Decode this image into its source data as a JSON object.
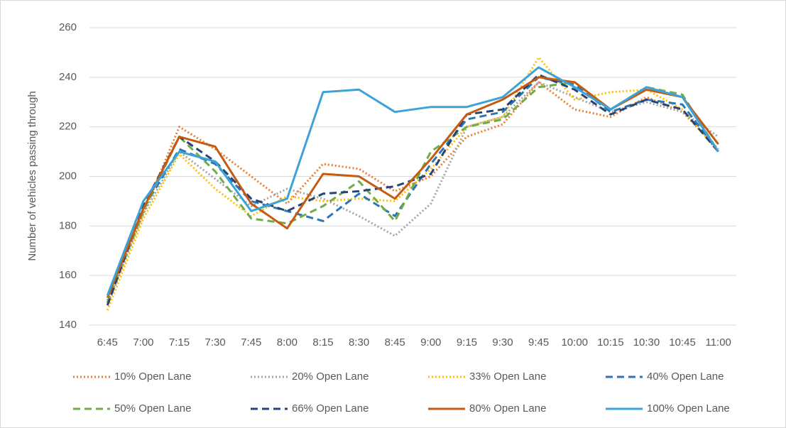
{
  "chart_data": {
    "type": "line",
    "y_label": "Number of vehicles passing through",
    "categories": [
      "6:45",
      "7:00",
      "7:15",
      "7:30",
      "7:45",
      "8:00",
      "8:15",
      "8:30",
      "8:45",
      "9:00",
      "9:15",
      "9:30",
      "9:45",
      "10:00",
      "10:15",
      "10:30",
      "10:45",
      "11:00"
    ],
    "ylim": [
      140,
      260
    ],
    "yticks": [
      140,
      160,
      180,
      200,
      220,
      240,
      260
    ],
    "grid": true,
    "legend": "bottom",
    "series": [
      {
        "name": "10% Open Lane",
        "color": "#ed7d31",
        "dash": "dotted",
        "values": [
          148,
          185,
          220,
          211,
          200,
          189,
          205,
          203,
          194,
          200,
          216,
          221,
          238,
          227,
          224,
          232,
          226,
          211
        ]
      },
      {
        "name": "20% Open Lane",
        "color": "#a5a5a5",
        "dash": "dotted",
        "values": [
          150,
          185,
          210,
          199,
          188,
          195,
          191,
          184,
          176,
          189,
          220,
          224,
          238,
          232,
          226,
          230,
          226,
          216
        ]
      },
      {
        "name": "33% Open Lane",
        "color": "#ffc000",
        "dash": "dotted",
        "values": [
          146,
          183,
          209,
          195,
          184,
          192,
          190,
          191,
          190,
          203,
          220,
          224,
          248,
          231,
          234,
          235,
          227,
          210
        ]
      },
      {
        "name": "40% Open Lane",
        "color": "#2e75b6",
        "dash": "dashed",
        "values": [
          149,
          187,
          211,
          205,
          190,
          186,
          182,
          193,
          184,
          205,
          223,
          226,
          240,
          237,
          226,
          231,
          229,
          210
        ]
      },
      {
        "name": "50% Open Lane",
        "color": "#70ad47",
        "dash": "dashed",
        "values": [
          149,
          186,
          216,
          202,
          183,
          181,
          188,
          198,
          182,
          210,
          220,
          223,
          236,
          238,
          227,
          236,
          233,
          210
        ]
      },
      {
        "name": "66% Open Lane",
        "color": "#264478",
        "dash": "dashed",
        "values": [
          148,
          188,
          216,
          206,
          191,
          186,
          193,
          194,
          196,
          201,
          225,
          227,
          241,
          235,
          225,
          231,
          227,
          210
        ]
      },
      {
        "name": "80% Open Lane",
        "color": "#c55a11",
        "dash": "solid",
        "values": [
          151,
          187,
          216,
          212,
          189,
          179,
          201,
          200,
          191,
          207,
          225,
          231,
          240,
          238,
          227,
          235,
          232,
          213
        ]
      },
      {
        "name": "100% Open Lane",
        "color": "#3ba3d8",
        "dash": "solid",
        "values": [
          152,
          190,
          210,
          206,
          186,
          191,
          234,
          235,
          226,
          228,
          228,
          232,
          244,
          236,
          227,
          236,
          232,
          210
        ]
      }
    ]
  }
}
